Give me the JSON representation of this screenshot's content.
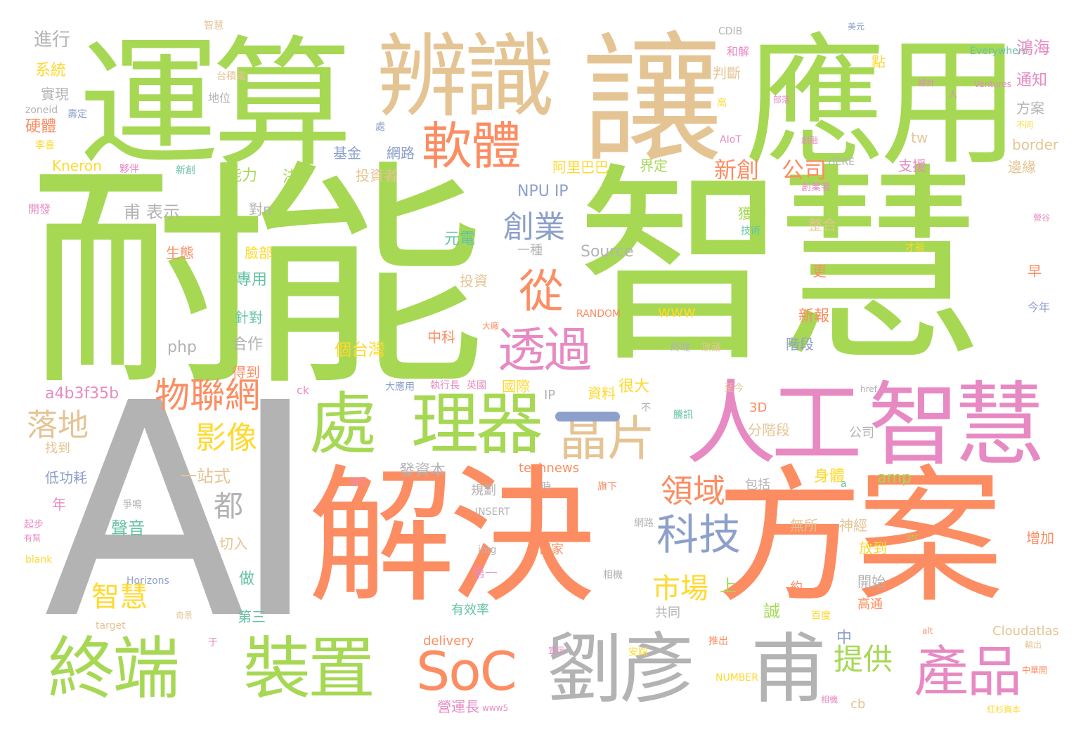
{
  "palette": {
    "green": "#a6d854",
    "orange": "#fc8d62",
    "gray": "#b3b3b3",
    "tan": "#e5c494",
    "pink": "#e78ac3",
    "blue": "#8da0cb",
    "yellow": "#ffd92f",
    "teal": "#66c2a5"
  },
  "words": [
    "耐能",
    "智慧",
    "AI",
    "解決",
    "方案",
    "運算",
    "應用",
    "讓",
    "辨識",
    "人工",
    "智慧",
    "處",
    "理器",
    "終端",
    "裝置",
    "劉彥",
    "甫",
    "SoC",
    "產品",
    "晶片",
    "軟體",
    "從",
    "透過",
    "科技",
    "物聯網",
    "創業",
    "落地",
    "影像",
    "都",
    "領域",
    "市場",
    "智慧",
    "提供",
    "新創",
    "公司",
    "進行",
    "系統",
    "實現",
    "硬體",
    "zoneid",
    "壽定",
    "李喜",
    "Kneron",
    "夥伴",
    "新創",
    "開發",
    "甫",
    "表示",
    "能力",
    "決",
    "NPU IP",
    "對n",
    "生態",
    "臉部",
    "專用",
    "針對",
    "合作",
    "得到",
    "php",
    "a4b3f35b",
    "找到",
    "低功耗",
    "年",
    "一站式",
    "看到",
    "爭鳴",
    "起步",
    "有幫",
    "聲音",
    "切入",
    "blank",
    "Horizons",
    "做",
    "第三",
    "奇景",
    "target",
    "智慧",
    "CDIB",
    "美元",
    "Everywhere",
    "鴻海",
    "通知",
    "方案",
    "不同",
    "border",
    "邊緣",
    "支援",
    "阿里巴巴",
    "投資者",
    "基金",
    "網路",
    "處",
    "台積電",
    "地位",
    "判斷",
    "和解",
    "高",
    "AIoT",
    "點",
    "tw",
    "界定",
    "HERE",
    "創業者",
    "獲得",
    "技術",
    "元電",
    "一種",
    "Source",
    "整合",
    "更",
    "早",
    "今年",
    "投資",
    "www",
    "RANDOM",
    "大廠",
    "中科",
    "新報",
    "階段",
    "終端",
    "放諸",
    "個台灣",
    "IP",
    "資料",
    "很大",
    "大應用",
    "執行長",
    "英國",
    "國際",
    "3D",
    "分階段",
    "公司",
    "不",
    "騰訊",
    "至今",
    "發資本",
    "technews",
    "規劃",
    "時",
    "旗下",
    "身體",
    "amp",
    "INSERT",
    "包括",
    "無所",
    "神經",
    "網路",
    "src",
    "img",
    "百家",
    "放到",
    "增加",
    "第一",
    "相機",
    "約",
    "開始",
    "高通",
    "共同",
    "有效率",
    "誠",
    "上",
    "中",
    "delivery",
    "NUMBER",
    "cb",
    "營運長",
    "www5",
    "紅杉資本",
    "Cloudatlas",
    "推出",
    "安踩",
    "alt",
    "中華開",
    "輸出",
    "于",
    "百度",
    "a",
    "href",
    "ck",
    "才能",
    "Ventures",
    "人",
    "總計",
    "部落",
    "創融",
    "營谷",
    "宣示",
    "相機",
    "獨立",
    "結合",
    "一一"
  ]
}
